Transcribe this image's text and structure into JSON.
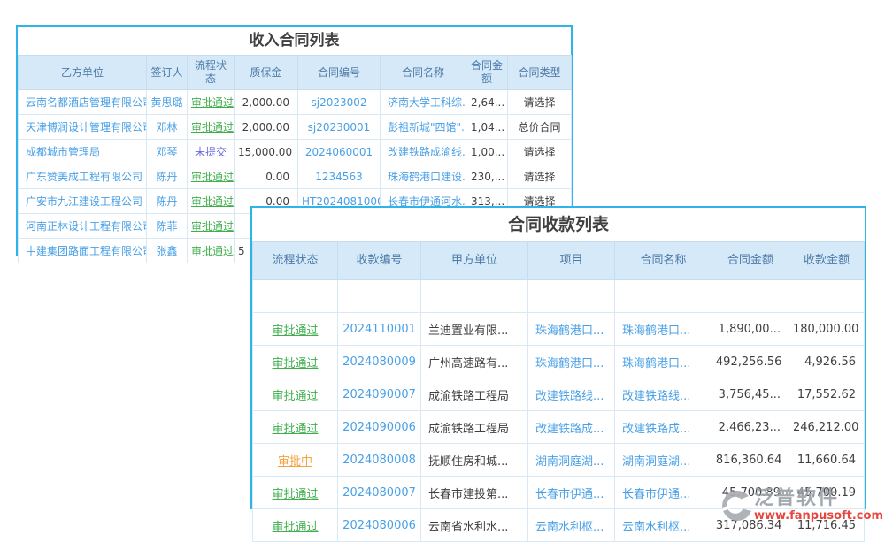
{
  "income_contracts": {
    "title": "收入合同列表",
    "columns": [
      "乙方单位",
      "签订人",
      "流程状态",
      "质保金",
      "合同编号",
      "合同名称",
      "合同金额",
      "合同类型"
    ],
    "rows": [
      [
        "云南名都酒店管理有限公司",
        "黄思璐",
        "审批通过",
        "2,000.00",
        "sj2023002",
        "济南大学工科综...",
        "2,64...",
        "请选择"
      ],
      [
        "天津博润设计管理有限公司",
        "邓林",
        "审批通过",
        "2,000.00",
        "sj20230001",
        "彭祖新城\"四馆\"...",
        "1,04...",
        "总价合同"
      ],
      [
        "成都城市管理局",
        "邓琴",
        "未提交",
        "15,000.00",
        "2024060001",
        "改建铁路成渝线...",
        "1,00...",
        "请选择"
      ],
      [
        "广东赞美成工程有限公司",
        "陈丹",
        "审批通过",
        "0.00",
        "1234563",
        "珠海鹤港口建设...",
        "230,...",
        "请选择"
      ],
      [
        "广安市九江建设工程公司",
        "陈丹",
        "审批通过",
        "0.00",
        "HT2024081000...",
        "长春市伊通河水...",
        "313,...",
        "请选择"
      ],
      [
        "河南正林设计工程有限公司",
        "陈菲",
        "审批通过",
        "",
        "",
        "",
        "",
        ""
      ],
      [
        "中建集团路面工程有限公司",
        "张鑫",
        "审批通过",
        "5",
        "",
        "",
        "",
        ""
      ]
    ]
  },
  "receipts": {
    "title": "合同收款列表",
    "columns": [
      "流程状态",
      "收款编号",
      "甲方单位",
      "项目",
      "合同名称",
      "合同金额",
      "收款金额"
    ],
    "rows": [
      [
        "审批通过",
        "2024110001",
        "兰迪置业有限...",
        "珠海鹤港口...",
        "珠海鹤港口...",
        "1,890,00...",
        "180,000.00"
      ],
      [
        "审批通过",
        "2024080009",
        "广州高速路有...",
        "珠海鹤港口...",
        "珠海鹤港口...",
        "492,256.56",
        "4,926.56"
      ],
      [
        "审批通过",
        "2024090007",
        "成渝铁路工程局",
        "改建铁路线...",
        "改建铁路线...",
        "3,756,45...",
        "17,552.62"
      ],
      [
        "审批通过",
        "2024090006",
        "成渝铁路工程局",
        "改建铁路成...",
        "改建铁路成...",
        "2,466,23...",
        "246,212.00"
      ],
      [
        "审批中",
        "2024080008",
        "抚顺住房和城...",
        "湖南洞庭湖...",
        "湖南洞庭湖...",
        "816,360.64",
        "11,660.64"
      ],
      [
        "审批通过",
        "2024080007",
        "长春市建投第...",
        "长春市伊通...",
        "长春市伊通...",
        "45,700.89",
        "45,700.19"
      ],
      [
        "审批通过",
        "2024080006",
        "云南省水利水...",
        "云南水利枢...",
        "云南水利枢...",
        "317,086.34",
        "11,716.45"
      ]
    ]
  },
  "status_styles": {
    "审批通过": {
      "color": "#3fae4d",
      "underline": true
    },
    "未提交": {
      "color": "#6a6ada",
      "underline": false
    },
    "审批中": {
      "color": "#f2a33c",
      "underline": true
    }
  },
  "colors": {
    "window_border": "#2fb4e9",
    "header_bg": "#d6e9f8",
    "header_text": "#4d7ba8",
    "link": "#4aa0e6",
    "watermark_url": "#e4372e"
  },
  "watermark": {
    "brand": "泛普软件",
    "url": "www.fanpusoft.com"
  }
}
